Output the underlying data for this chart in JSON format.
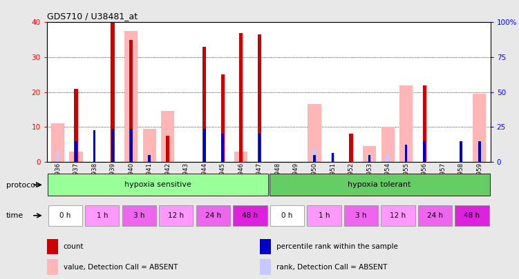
{
  "title": "GDS710 / U38481_at",
  "samples": [
    "GSM21936",
    "GSM21937",
    "GSM21938",
    "GSM21939",
    "GSM21940",
    "GSM21941",
    "GSM21942",
    "GSM21943",
    "GSM21944",
    "GSM21945",
    "GSM21946",
    "GSM21947",
    "GSM21948",
    "GSM21949",
    "GSM21950",
    "GSM21951",
    "GSM21952",
    "GSM21953",
    "GSM21954",
    "GSM21955",
    "GSM21956",
    "GSM21957",
    "GSM21958",
    "GSM21959"
  ],
  "count_values": [
    0,
    21,
    0,
    40,
    35,
    0,
    7.5,
    0,
    33,
    25,
    37,
    36.5,
    0,
    0,
    0,
    0,
    8,
    0,
    0,
    0,
    22,
    0,
    0,
    0
  ],
  "rank_values": [
    0,
    6,
    9,
    9.5,
    9.5,
    2,
    0,
    0,
    9.5,
    8,
    0,
    8,
    0,
    0,
    2,
    2.5,
    0,
    2,
    0,
    5,
    6,
    0,
    6,
    6
  ],
  "absent_value_values": [
    11,
    3,
    0,
    0,
    37.5,
    9.5,
    14.5,
    0,
    0,
    0,
    3,
    0,
    0,
    0,
    16.5,
    0,
    0,
    4.5,
    10,
    22,
    0,
    0,
    0,
    19.5
  ],
  "absent_rank_values": [
    3,
    0,
    0,
    0,
    0,
    0,
    0,
    0,
    0,
    0,
    0,
    0,
    0,
    0,
    4,
    2.5,
    0,
    2,
    2,
    0,
    0,
    0,
    0,
    6
  ],
  "ylim": [
    0,
    40
  ],
  "yticks_left": [
    0,
    10,
    20,
    30,
    40
  ],
  "yticks_right": [
    0,
    25,
    50,
    75,
    100
  ],
  "ytick_labels_right": [
    "0",
    "25",
    "50",
    "75",
    "100%"
  ],
  "color_count": "#cc0000",
  "color_rank": "#0000cc",
  "color_absent_value": "#ffb6b6",
  "color_absent_rank": "#c8c8ff",
  "protocol_label": "protocol",
  "time_label": "time",
  "protocol_groups": [
    {
      "label": "hypoxia sensitive",
      "start": 0,
      "end": 12,
      "color": "#99ff99"
    },
    {
      "label": "hypoxia tolerant",
      "start": 12,
      "end": 24,
      "color": "#66cc66"
    }
  ],
  "time_groups": [
    {
      "label": "0 h",
      "start": 0,
      "end": 2,
      "color": "#ffffff"
    },
    {
      "label": "1 h",
      "start": 2,
      "end": 4,
      "color": "#ff99ff"
    },
    {
      "label": "3 h",
      "start": 4,
      "end": 6,
      "color": "#ee66ee"
    },
    {
      "label": "12 h",
      "start": 6,
      "end": 8,
      "color": "#ff99ff"
    },
    {
      "label": "24 h",
      "start": 8,
      "end": 10,
      "color": "#ee66ee"
    },
    {
      "label": "48 h",
      "start": 10,
      "end": 12,
      "color": "#dd22dd"
    },
    {
      "label": "0 h",
      "start": 12,
      "end": 14,
      "color": "#ffffff"
    },
    {
      "label": "1 h",
      "start": 14,
      "end": 16,
      "color": "#ff99ff"
    },
    {
      "label": "3 h",
      "start": 16,
      "end": 18,
      "color": "#ee66ee"
    },
    {
      "label": "12 h",
      "start": 18,
      "end": 20,
      "color": "#ff99ff"
    },
    {
      "label": "24 h",
      "start": 20,
      "end": 22,
      "color": "#ee66ee"
    },
    {
      "label": "48 h",
      "start": 22,
      "end": 24,
      "color": "#dd22dd"
    }
  ],
  "bg_color": "#e8e8e8",
  "plot_bg": "#ffffff",
  "legend_items": [
    {
      "label": "count",
      "color": "#cc0000"
    },
    {
      "label": "percentile rank within the sample",
      "color": "#0000cc"
    },
    {
      "label": "value, Detection Call = ABSENT",
      "color": "#ffb6b6"
    },
    {
      "label": "rank, Detection Call = ABSENT",
      "color": "#c8c8ff"
    }
  ]
}
